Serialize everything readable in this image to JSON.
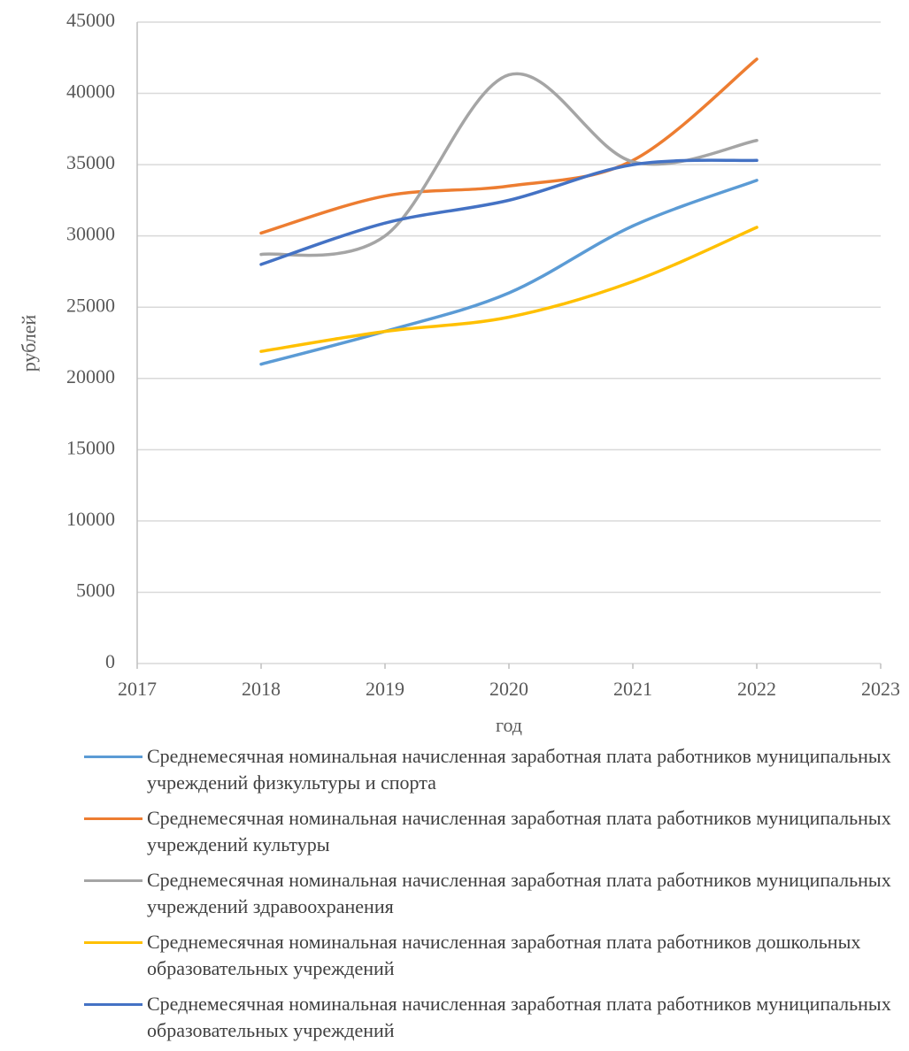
{
  "chart_data": {
    "type": "line",
    "smooth": true,
    "y_label": "рублей",
    "x_label": "год",
    "xlim": [
      2017,
      2023
    ],
    "xticks": [
      2017,
      2018,
      2019,
      2020,
      2021,
      2022,
      2023
    ],
    "ylim": [
      0,
      45000
    ],
    "yticks": [
      0,
      5000,
      10000,
      15000,
      20000,
      25000,
      30000,
      35000,
      40000,
      45000
    ],
    "grid": true,
    "legend": "bottom",
    "x": [
      2018,
      2019,
      2020,
      2021,
      2022
    ],
    "series": [
      {
        "name": "Среднемесячная номинальная начисленная заработная плата работников муниципальных учреждений физкультуры и спорта",
        "color": "#5b9bd5",
        "values": [
          21000,
          23300,
          26000,
          30700,
          33900
        ]
      },
      {
        "name": "Среднемесячная номинальная начисленная заработная плата работников муниципальных учреждений культуры",
        "color": "#ed7d31",
        "values": [
          30200,
          32800,
          33500,
          35300,
          42400
        ]
      },
      {
        "name": "Среднемесячная номинальная начисленная заработная плата работников муниципальных учреждений здравоохранения",
        "color": "#a5a5a5",
        "values": [
          28700,
          30000,
          41300,
          35200,
          36700
        ]
      },
      {
        "name": "Среднемесячная номинальная начисленная заработная плата работников дошкольных образовательных учреждений",
        "color": "#ffc000",
        "values": [
          21900,
          23300,
          24300,
          26800,
          30600
        ]
      },
      {
        "name": "Среднемесячная номинальная начисленная заработная плата работников муниципальных образовательных учреждений",
        "color": "#4472c4",
        "values": [
          28000,
          30900,
          32500,
          35000,
          35300
        ]
      }
    ]
  }
}
